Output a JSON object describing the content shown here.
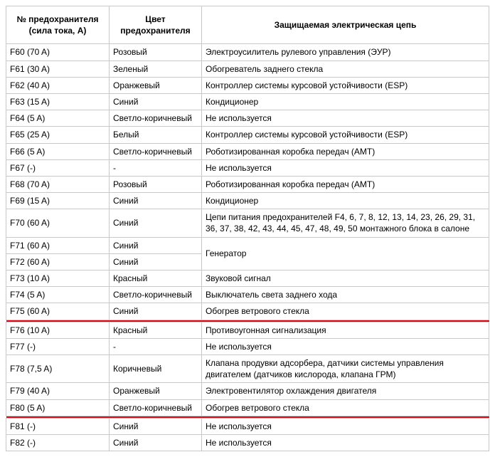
{
  "headers": {
    "col1": "№ предохранителя (сила тока, А)",
    "col2": "Цвет предохранителя",
    "col3": "Защищаемая электрическая цепь"
  },
  "rows": [
    {
      "f": "F60 (70 A)",
      "c": "Розовый",
      "d": "Электроусилитель рулевого управления (ЭУР)"
    },
    {
      "f": "F61 (30 A)",
      "c": "Зеленый",
      "d": "Обогреватель заднего стекла"
    },
    {
      "f": "F62 (40 A)",
      "c": "Оранжевый",
      "d": "Контроллер системы курсовой устойчивости (ESP)"
    },
    {
      "f": "F63 (15 A)",
      "c": "Синий",
      "d": "Кондиционер"
    },
    {
      "f": "F64 (5 A)",
      "c": "Светло-коричневый",
      "d": "Не используется"
    },
    {
      "f": "F65 (25 A)",
      "c": "Белый",
      "d": "Контроллер системы курсовой устойчивости (ESP)"
    },
    {
      "f": "F66 (5 A)",
      "c": "Светло-коричневый",
      "d": "Роботизированная коробка передач (АМТ)"
    },
    {
      "f": "F67 (-)",
      "c": "-",
      "d": "Не используется"
    },
    {
      "f": "F68 (70 A)",
      "c": "Розовый",
      "d": "Роботизированная коробка передач (АМТ)"
    },
    {
      "f": "F69 (15 A)",
      "c": "Синий",
      "d": "Кондиционер"
    },
    {
      "f": "F70 (60 A)",
      "c": "Синий",
      "d": "Цепи питания предохранителей F4, 6, 7, 8, 12, 13, 14, 23, 26, 29, 31, 36, 37, 38, 42, 43, 44, 45, 47, 48, 49, 50 монтажного блока в салоне"
    },
    {
      "f": "F71 (60 A)",
      "c": "Синий",
      "d": "Генератор",
      "merge_down_d": true
    },
    {
      "f": "F72 (60 A)",
      "c": "Синий"
    },
    {
      "f": "F73 (10 A)",
      "c": "Красный",
      "d": "Звуковой сигнал"
    },
    {
      "f": "F74 (5 A)",
      "c": "Светло-коричневый",
      "d": "Выключатель света заднего хода"
    },
    {
      "f": "F75 (60 A)",
      "c": "Синий",
      "d": "Обогрев ветрового стекла"
    },
    {
      "hl": true
    },
    {
      "f": "F76 (10 A)",
      "c": "Красный",
      "d": "Противоугонная сигнализация"
    },
    {
      "f": "F77 (-)",
      "c": "-",
      "d": "Не используется"
    },
    {
      "f": "F78 (7,5 A)",
      "c": "Коричневый",
      "d": "Клапана продувки адсорбера, датчики системы управления двигателем (датчиков кислорода, клапана ГРМ)"
    },
    {
      "f": "F79 (40 A)",
      "c": "Оранжевый",
      "d": "Электровентилятор охлаждения двигателя"
    },
    {
      "f": "F80 (5 A)",
      "c": "Светло-коричневый",
      "d": "Обогрев ветрового стекла"
    },
    {
      "hl": true
    },
    {
      "f": "F81 (-)",
      "c": "Синий",
      "d": "Не используется"
    },
    {
      "f": "F82 (-)",
      "c": "Синий",
      "d": "Не используется"
    }
  ],
  "highlight_color": "#e30613"
}
